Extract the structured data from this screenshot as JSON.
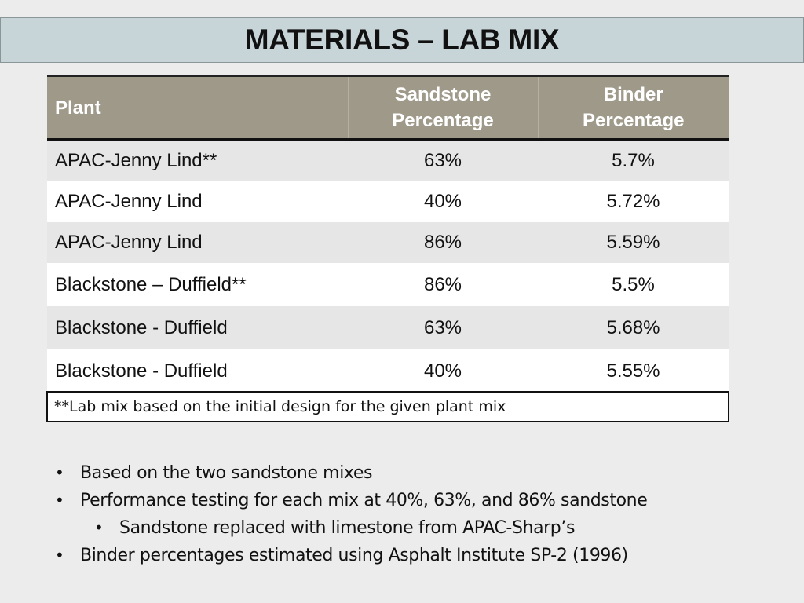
{
  "title": "MATERIALS – LAB MIX",
  "table": {
    "headers": {
      "plant": "Plant",
      "sandstone": [
        "Sandstone",
        "Percentage"
      ],
      "binder": [
        "Binder",
        "Percentage"
      ]
    },
    "rows": [
      {
        "plant": "APAC-Jenny Lind**",
        "sandstone": "63%",
        "binder": "5.7%"
      },
      {
        "plant": "APAC-Jenny Lind",
        "sandstone": "40%",
        "binder": "5.72%"
      },
      {
        "plant": "APAC-Jenny Lind",
        "sandstone": "86%",
        "binder": "5.59%"
      },
      {
        "plant": "Blackstone – Duffield**",
        "sandstone": "86%",
        "binder": "5.5%"
      },
      {
        "plant": "Blackstone - Duffield",
        "sandstone": "63%",
        "binder": "5.68%"
      },
      {
        "plant": "Blackstone - Duffield",
        "sandstone": "40%",
        "binder": "5.55%"
      }
    ]
  },
  "footnote": "**Lab mix based on the initial design for the given plant mix",
  "bullets": [
    {
      "text": "Based on the two sandstone mixes"
    },
    {
      "text": "Performance testing for each mix at 40%, 63%, and 86% sandstone"
    },
    {
      "text": "Sandstone replaced with limestone from APAC-Sharp’s"
    },
    {
      "text": "Binder percentages estimated using Asphalt Institute SP-2 (1996)"
    }
  ]
}
